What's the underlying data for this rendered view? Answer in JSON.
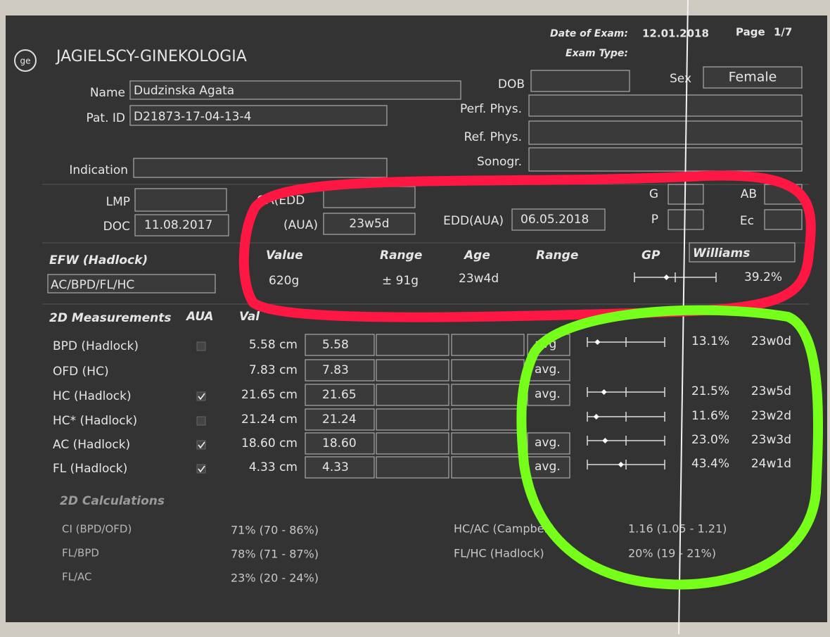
{
  "header": {
    "clinic": "JAGIELSCY-GINEKOLOGIA",
    "date_label": "Date of Exam:",
    "date": "12.01.2018",
    "page_label": "Page",
    "page": "1/7",
    "exam_type_label": "Exam Type:"
  },
  "patient": {
    "name_label": "Name",
    "name": "Dudzinska Agata",
    "id_label": "Pat. ID",
    "id": "D21873-17-04-13-4",
    "indication_label": "Indication",
    "dob_label": "DOB",
    "sex_label": "Sex",
    "sex": "Female",
    "perf_phys_label": "Perf. Phys.",
    "ref_phys_label": "Ref. Phys.",
    "sonogr_label": "Sonogr."
  },
  "dates": {
    "lmp_label": "LMP",
    "doc_label": "DOC",
    "doc": "11.08.2017",
    "ga_edd_label": "GA(EDD",
    "ga_aua_label": "(AUA)",
    "ga_aua": "23w5d",
    "edd_aua_label": "EDD(AUA)",
    "edd_aua": "06.05.2018",
    "g_label": "G",
    "p_label": "P",
    "ab_label": "AB",
    "ec_label": "Ec"
  },
  "efw": {
    "title": "EFW (Hadlock)",
    "formula": "AC/BPD/FL/HC",
    "headers": [
      "Value",
      "Range",
      "Age",
      "Range",
      "GP"
    ],
    "gp_method": "Williams",
    "value": "620g",
    "range": "± 91g",
    "age": "23w4d",
    "gp": "39.2%"
  },
  "measurements": {
    "title": "2D Measurements",
    "aua_header": "AUA",
    "value_header": "Val",
    "rows": [
      {
        "name": "BPD (Hadlock)",
        "aua": false,
        "value": "5.58 cm",
        "entry": "5.58",
        "method": "avg",
        "gp": "13.1%",
        "age": "23w0d"
      },
      {
        "name": "OFD (HC)",
        "value": "7.83 cm",
        "entry": "7.83",
        "method": "avg."
      },
      {
        "name": "HC (Hadlock)",
        "aua": true,
        "value": "21.65 cm",
        "entry": "21.65",
        "method": "avg.",
        "gp": "21.5%",
        "age": "23w5d"
      },
      {
        "name": "HC* (Hadlock)",
        "aua": false,
        "value": "21.24 cm",
        "entry": "21.24",
        "gp": "11.6%",
        "age": "23w2d"
      },
      {
        "name": "AC (Hadlock)",
        "aua": true,
        "value": "18.60 cm",
        "entry": "18.60",
        "method": "avg.",
        "gp": "23.0%",
        "age": "23w3d"
      },
      {
        "name": "FL (Hadlock)",
        "aua": true,
        "value": "4.33 cm",
        "entry": "4.33",
        "method": "avg.",
        "gp": "43.4%",
        "age": "24w1d"
      }
    ]
  },
  "calculations": {
    "title": "2D Calculations",
    "left_rows": [
      {
        "name": "CI (BPD/OFD)",
        "value": "71% (70 - 86%)"
      },
      {
        "name": "FL/BPD",
        "value": "78% (71 - 87%)"
      },
      {
        "name": "FL/AC",
        "value": "23% (20 - 24%)"
      }
    ],
    "right_rows": [
      {
        "name": "HC/AC (Campbell)",
        "value": "1.16 (1.05 - 1.21)"
      },
      {
        "name": "FL/HC (Hadlock)",
        "value": "20% (19 - 21%)"
      }
    ]
  }
}
